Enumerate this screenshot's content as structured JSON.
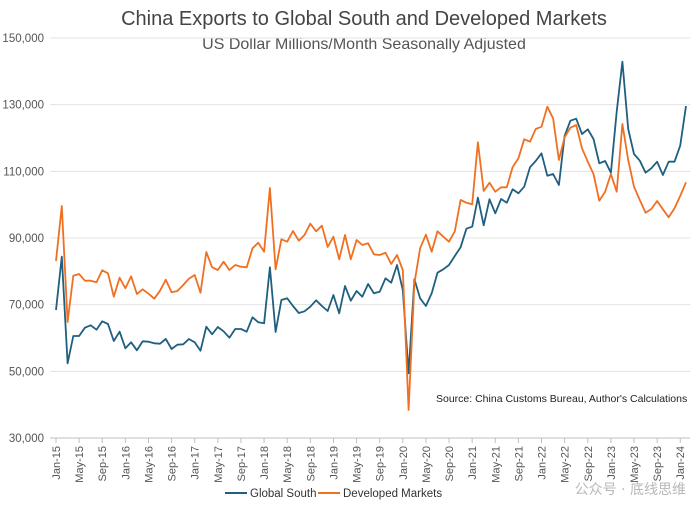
{
  "chart_data": {
    "type": "line",
    "title": "China Exports to Global South and Developed Markets",
    "subtitle": "US Dollar Millions/Month Seasonally Adjusted",
    "annotation": "Source: China Customs Bureau, Author's Calculations",
    "xlabel": "",
    "ylabel": "",
    "ylim": [
      30000,
      150000
    ],
    "y_ticks": [
      "30,000",
      "50,000",
      "70,000",
      "90,000",
      "110,000",
      "130,000",
      "150,000"
    ],
    "y_tick_values": [
      30000,
      50000,
      70000,
      90000,
      110000,
      130000,
      150000
    ],
    "x_start": "Jan-15",
    "x_end": "Feb-24",
    "x_ticks": [
      "Jan-15",
      "May-15",
      "Sep-15",
      "Jan-16",
      "May-16",
      "Sep-16",
      "Jan-17",
      "May-17",
      "Sep-17",
      "Jan-18",
      "May-18",
      "Sep-18",
      "Jan-19",
      "May-19",
      "Sep-19",
      "Jan-20",
      "May-20",
      "Sep-20",
      "Jan-21",
      "May-21",
      "Sep-21",
      "Jan-22",
      "May-22",
      "Sep-22",
      "Jan-23",
      "May-23",
      "Sep-23",
      "Jan-24"
    ],
    "grid": true,
    "legend": "bottom",
    "series": [
      {
        "name": "Global South",
        "color": "#1f5f7f",
        "values": [
          68400,
          84400,
          52400,
          60600,
          60600,
          63100,
          63800,
          62500,
          65000,
          64200,
          59100,
          61900,
          56900,
          58700,
          56300,
          59000,
          58900,
          58400,
          58300,
          59700,
          56700,
          58000,
          58100,
          59700,
          58700,
          56200,
          63400,
          61100,
          63300,
          62000,
          60100,
          62700,
          62700,
          61900,
          66200,
          64700,
          64400,
          81200,
          61800,
          71400,
          71900,
          69600,
          67500,
          68000,
          69400,
          71300,
          69600,
          68100,
          72900,
          67400,
          75600,
          71200,
          74100,
          72400,
          76200,
          73400,
          73900,
          77900,
          76600,
          81900,
          74400,
          49400,
          77600,
          71900,
          69600,
          73400,
          79600,
          80600,
          81900,
          84600,
          87200,
          92800,
          93400,
          102100,
          93800,
          101600,
          97400,
          101700,
          100600,
          104600,
          103400,
          105400,
          111200,
          113100,
          115400,
          108700,
          109200,
          105900,
          120600,
          125200,
          125800,
          121200,
          122600,
          119700,
          112400,
          113100,
          109600,
          127900,
          142900,
          122700,
          115200,
          113200,
          109600,
          110900,
          112900,
          108900,
          112900,
          112900,
          117700,
          129600
        ]
      },
      {
        "name": "Developed Markets",
        "color": "#f07022",
        "values": [
          83100,
          99600,
          64800,
          78700,
          79200,
          77200,
          77200,
          76700,
          80300,
          79400,
          72400,
          78100,
          74900,
          78500,
          73200,
          74600,
          73300,
          71800,
          74200,
          77500,
          73700,
          74100,
          75900,
          77800,
          78900,
          73600,
          85800,
          81200,
          80400,
          82900,
          80400,
          81900,
          81400,
          81200,
          86900,
          88600,
          85900,
          105000,
          80600,
          89600,
          88900,
          92100,
          89200,
          90900,
          94300,
          92000,
          93700,
          87300,
          90400,
          83600,
          90900,
          83600,
          89400,
          87900,
          88400,
          85100,
          84900,
          85600,
          82200,
          84900,
          80400,
          38400,
          76400,
          86900,
          91000,
          85900,
          92000,
          90400,
          88900,
          92000,
          101400,
          100600,
          100100,
          118700,
          104100,
          106600,
          103900,
          105200,
          105200,
          111200,
          113900,
          119600,
          118900,
          122700,
          123400,
          129400,
          125900,
          113400,
          120200,
          123100,
          123900,
          116900,
          112900,
          109200,
          101200,
          103900,
          109200,
          103900,
          124200,
          113400,
          105400,
          101400,
          97600,
          98700,
          101100,
          98600,
          96200,
          98900,
          102600,
          106700
        ]
      }
    ]
  },
  "watermark": "公众号 · 底线思维"
}
